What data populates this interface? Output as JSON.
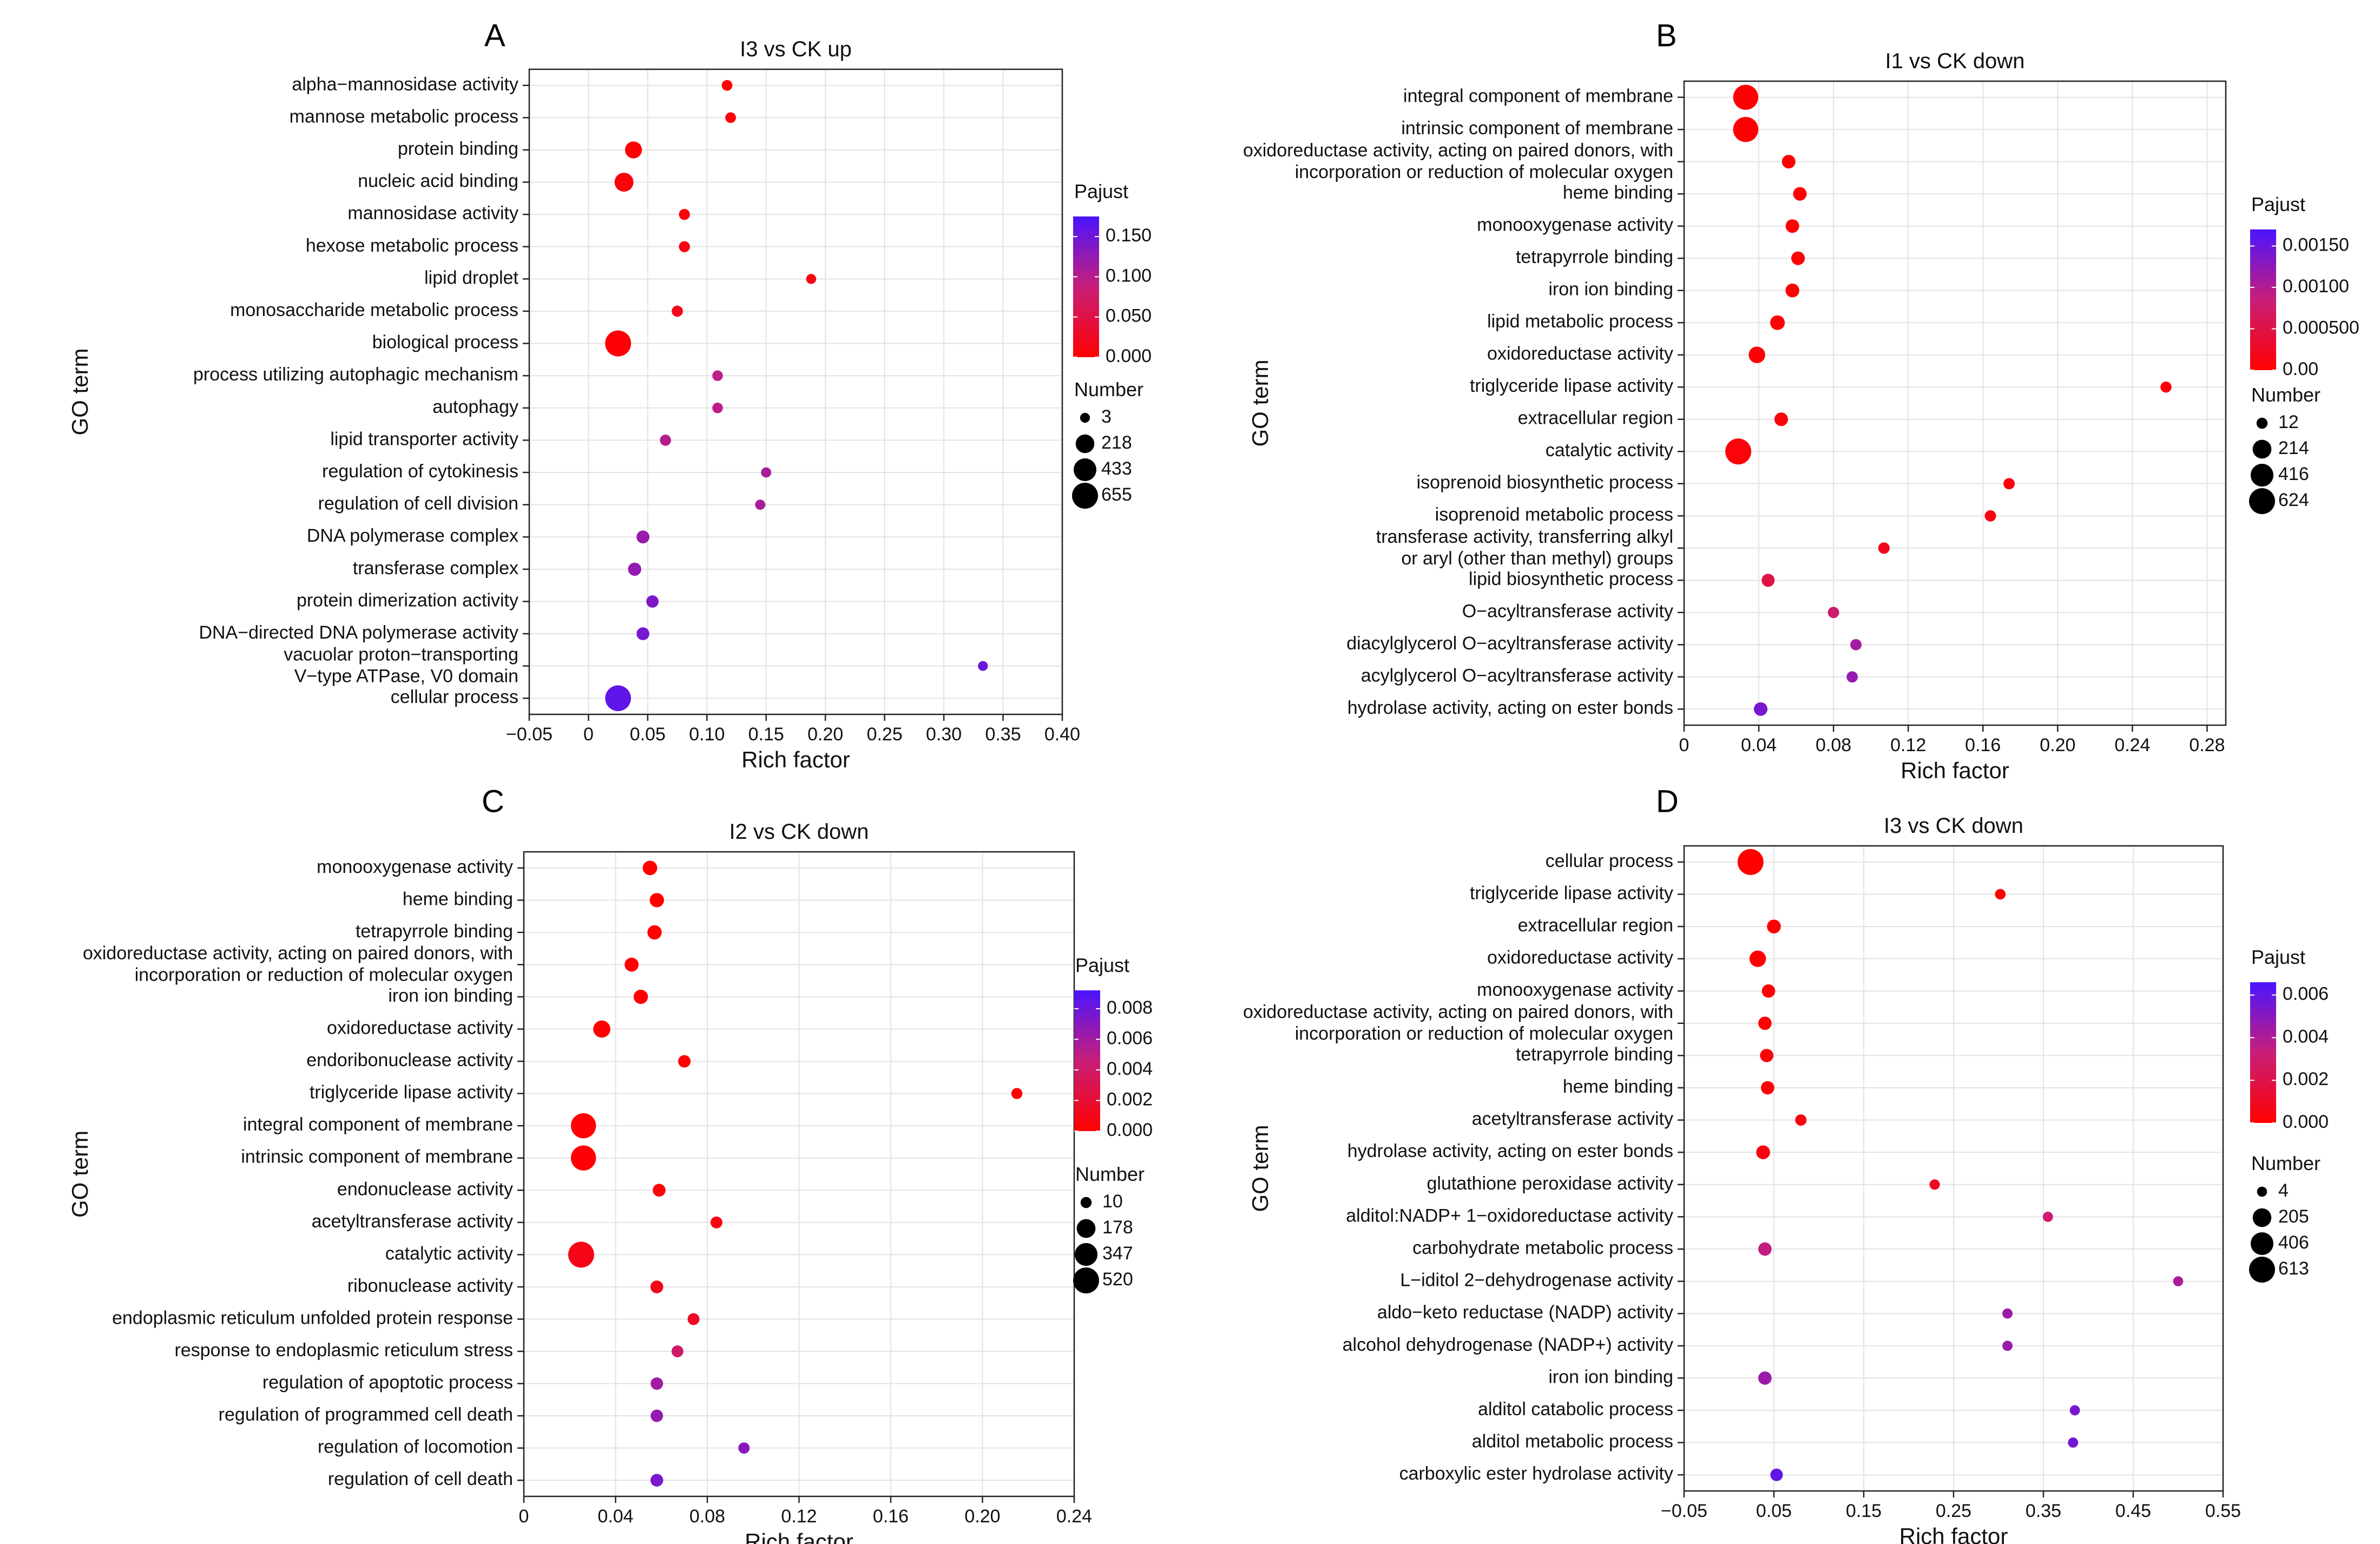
{
  "chart_data": [
    {
      "type": "scatter",
      "panel": "A",
      "title": "I3 vs CK up",
      "xlabel": "Rich factor",
      "ylabel": "GO term",
      "xlim": [
        -0.05,
        0.4
      ],
      "xticks": [
        -0.05,
        0,
        0.05,
        0.1,
        0.15,
        0.2,
        0.25,
        0.3,
        0.35,
        0.4
      ],
      "xtick_labels": [
        "−0.05",
        "0",
        "0.05",
        "0.10",
        "0.15",
        "0.20",
        "0.25",
        "0.30",
        "0.35",
        "0.40"
      ],
      "grid": true,
      "color_legend": {
        "title": "Pajust",
        "range": [
          0,
          0.175
        ],
        "ticks": [
          0.15,
          0.1,
          0.05,
          0
        ],
        "tick_labels": [
          "0.150",
          "0.100",
          "0.050",
          "0.000"
        ]
      },
      "size_legend": {
        "title": "Number",
        "values": [
          3,
          218,
          433,
          655
        ],
        "labels": [
          "3",
          "218",
          "433",
          "655"
        ]
      },
      "terms": [
        {
          "label": [
            "alpha−mannosidase activity"
          ],
          "rich_factor": 0.117,
          "pajust": 0.003,
          "number": 9
        },
        {
          "label": [
            "mannose metabolic process"
          ],
          "rich_factor": 0.12,
          "pajust": 0.003,
          "number": 9
        },
        {
          "label": [
            "protein binding"
          ],
          "rich_factor": 0.038,
          "pajust": 0.002,
          "number": 150
        },
        {
          "label": [
            "nucleic acid binding"
          ],
          "rich_factor": 0.03,
          "pajust": 0.004,
          "number": 230
        },
        {
          "label": [
            "mannosidase activity"
          ],
          "rich_factor": 0.081,
          "pajust": 0.008,
          "number": 12
        },
        {
          "label": [
            "hexose metabolic process"
          ],
          "rich_factor": 0.081,
          "pajust": 0.01,
          "number": 12
        },
        {
          "label": [
            "lipid droplet"
          ],
          "rich_factor": 0.188,
          "pajust": 0.014,
          "number": 4
        },
        {
          "label": [
            "monosaccharide metabolic process"
          ],
          "rich_factor": 0.075,
          "pajust": 0.02,
          "number": 14
        },
        {
          "label": [
            "biological process"
          ],
          "rich_factor": 0.025,
          "pajust": 0.005,
          "number": 655
        },
        {
          "label": [
            "process utilizing autophagic mechanism"
          ],
          "rich_factor": 0.109,
          "pajust": 0.095,
          "number": 8
        },
        {
          "label": [
            "autophagy"
          ],
          "rich_factor": 0.109,
          "pajust": 0.095,
          "number": 8
        },
        {
          "label": [
            "lipid transporter activity"
          ],
          "rich_factor": 0.065,
          "pajust": 0.1,
          "number": 14
        },
        {
          "label": [
            "regulation of cytokinesis"
          ],
          "rich_factor": 0.15,
          "pajust": 0.11,
          "number": 5
        },
        {
          "label": [
            "regulation of cell division"
          ],
          "rich_factor": 0.145,
          "pajust": 0.11,
          "number": 5
        },
        {
          "label": [
            "DNA polymerase complex"
          ],
          "rich_factor": 0.046,
          "pajust": 0.12,
          "number": 40
        },
        {
          "label": [
            "transferase complex"
          ],
          "rich_factor": 0.039,
          "pajust": 0.125,
          "number": 45
        },
        {
          "label": [
            "protein dimerization activity"
          ],
          "rich_factor": 0.054,
          "pajust": 0.14,
          "number": 30
        },
        {
          "label": [
            "DNA−directed DNA polymerase activity"
          ],
          "rich_factor": 0.046,
          "pajust": 0.145,
          "number": 38
        },
        {
          "label": [
            "vacuolar proton−transporting",
            "V−type ATPase, V0 domain"
          ],
          "rich_factor": 0.333,
          "pajust": 0.155,
          "number": 3
        },
        {
          "label": [
            "cellular process"
          ],
          "rich_factor": 0.025,
          "pajust": 0.16,
          "number": 640
        }
      ]
    },
    {
      "type": "scatter",
      "panel": "B",
      "title": "I1 vs CK down",
      "xlabel": "Rich factor",
      "ylabel": "GO term",
      "xlim": [
        0,
        0.29
      ],
      "xticks": [
        0,
        0.04,
        0.08,
        0.12,
        0.16,
        0.2,
        0.24,
        0.28
      ],
      "xtick_labels": [
        "0",
        "0.04",
        "0.08",
        "0.12",
        "0.16",
        "0.20",
        "0.24",
        "0.28"
      ],
      "grid": true,
      "color_legend": {
        "title": "Pajust",
        "range": [
          0,
          0.0017
        ],
        "ticks": [
          0.0015,
          0.001,
          0.0005,
          0
        ],
        "tick_labels": [
          "0.00150",
          "0.00100",
          "0.000500",
          "0.00"
        ]
      },
      "size_legend": {
        "title": "Number",
        "values": [
          12,
          214,
          416,
          624
        ],
        "labels": [
          "12",
          "214",
          "416",
          "624"
        ]
      },
      "terms": [
        {
          "label": [
            "integral component of membrane"
          ],
          "rich_factor": 0.033,
          "pajust": 1e-05,
          "number": 560
        },
        {
          "label": [
            "intrinsic component of membrane"
          ],
          "rich_factor": 0.033,
          "pajust": 1e-05,
          "number": 570
        },
        {
          "label": [
            "oxidoreductase activity, acting on paired donors, with",
            "incorporation or reduction of molecular oxygen"
          ],
          "rich_factor": 0.056,
          "pajust": 1e-05,
          "number": 50
        },
        {
          "label": [
            "heme binding"
          ],
          "rich_factor": 0.062,
          "pajust": 1e-05,
          "number": 50
        },
        {
          "label": [
            "monooxygenase activity"
          ],
          "rich_factor": 0.058,
          "pajust": 1e-05,
          "number": 50
        },
        {
          "label": [
            "tetrapyrrole binding"
          ],
          "rich_factor": 0.061,
          "pajust": 2e-05,
          "number": 50
        },
        {
          "label": [
            "iron ion binding"
          ],
          "rich_factor": 0.058,
          "pajust": 3e-05,
          "number": 55
        },
        {
          "label": [
            "lipid metabolic process"
          ],
          "rich_factor": 0.05,
          "pajust": 5e-05,
          "number": 75
        },
        {
          "label": [
            "oxidoreductase activity"
          ],
          "rich_factor": 0.039,
          "pajust": 5e-05,
          "number": 130
        },
        {
          "label": [
            "triglyceride lipase activity"
          ],
          "rich_factor": 0.258,
          "pajust": 5e-05,
          "number": 12
        },
        {
          "label": [
            "extracellular region"
          ],
          "rich_factor": 0.052,
          "pajust": 8e-05,
          "number": 50
        },
        {
          "label": [
            "catalytic activity"
          ],
          "rich_factor": 0.029,
          "pajust": 8e-05,
          "number": 624
        },
        {
          "label": [
            "isoprenoid biosynthetic process"
          ],
          "rich_factor": 0.174,
          "pajust": 0.0001,
          "number": 14
        },
        {
          "label": [
            "isoprenoid metabolic process"
          ],
          "rich_factor": 0.164,
          "pajust": 0.0001,
          "number": 15
        },
        {
          "label": [
            "transferase activity, transferring alkyl",
            "or aryl (other than methyl) groups"
          ],
          "rich_factor": 0.107,
          "pajust": 0.0002,
          "number": 16
        },
        {
          "label": [
            "lipid biosynthetic process"
          ],
          "rich_factor": 0.045,
          "pajust": 0.0005,
          "number": 40
        },
        {
          "label": [
            "O−acyltransferase activity"
          ],
          "rich_factor": 0.08,
          "pajust": 0.0008,
          "number": 15
        },
        {
          "label": [
            "diacylglycerol O−acyltransferase activity"
          ],
          "rich_factor": 0.092,
          "pajust": 0.0011,
          "number": 14
        },
        {
          "label": [
            "acylglycerol O−acyltransferase activity"
          ],
          "rich_factor": 0.09,
          "pajust": 0.0012,
          "number": 14
        },
        {
          "label": [
            "hydrolase activity, acting on ester bonds"
          ],
          "rich_factor": 0.041,
          "pajust": 0.0014,
          "number": 50
        }
      ]
    },
    {
      "type": "scatter",
      "panel": "C",
      "title": "I2 vs CK down",
      "xlabel": "Rich factor",
      "ylabel": "GO term",
      "xlim": [
        0,
        0.24
      ],
      "xticks": [
        0,
        0.04,
        0.08,
        0.12,
        0.16,
        0.2,
        0.24
      ],
      "xtick_labels": [
        "0",
        "0.04",
        "0.08",
        "0.12",
        "0.16",
        "0.20",
        "0.24"
      ],
      "grid": true,
      "color_legend": {
        "title": "Pajust",
        "range": [
          0,
          0.0092
        ],
        "ticks": [
          0.008,
          0.006,
          0.004,
          0.002,
          0
        ],
        "tick_labels": [
          "0.008",
          "0.006",
          "0.004",
          "0.002",
          "0.000"
        ]
      },
      "size_legend": {
        "title": "Number",
        "values": [
          10,
          178,
          347,
          520
        ],
        "labels": [
          "10",
          "178",
          "347",
          "520"
        ]
      },
      "terms": [
        {
          "label": [
            "monooxygenase activity"
          ],
          "rich_factor": 0.055,
          "pajust": 2e-05,
          "number": 60
        },
        {
          "label": [
            "heme binding"
          ],
          "rich_factor": 0.058,
          "pajust": 2e-05,
          "number": 55
        },
        {
          "label": [
            "tetrapyrrole binding"
          ],
          "rich_factor": 0.057,
          "pajust": 3e-05,
          "number": 55
        },
        {
          "label": [
            "oxidoreductase activity, acting on paired donors, with",
            "incorporation or reduction of molecular oxygen"
          ],
          "rich_factor": 0.047,
          "pajust": 3e-05,
          "number": 50
        },
        {
          "label": [
            "iron ion binding"
          ],
          "rich_factor": 0.051,
          "pajust": 5e-05,
          "number": 55
        },
        {
          "label": [
            "oxidoreductase activity"
          ],
          "rich_factor": 0.034,
          "pajust": 5e-05,
          "number": 125
        },
        {
          "label": [
            "endoribonuclease activity"
          ],
          "rich_factor": 0.07,
          "pajust": 0.0001,
          "number": 25
        },
        {
          "label": [
            "triglyceride lipase activity"
          ],
          "rich_factor": 0.215,
          "pajust": 0.0001,
          "number": 10
        },
        {
          "label": [
            "integral component of membrane"
          ],
          "rich_factor": 0.026,
          "pajust": 0.0002,
          "number": 470
        },
        {
          "label": [
            "intrinsic component of membrane"
          ],
          "rich_factor": 0.026,
          "pajust": 0.0002,
          "number": 470
        },
        {
          "label": [
            "endonuclease activity"
          ],
          "rich_factor": 0.059,
          "pajust": 0.0004,
          "number": 30
        },
        {
          "label": [
            "acetyltransferase activity"
          ],
          "rich_factor": 0.084,
          "pajust": 0.0006,
          "number": 18
        },
        {
          "label": [
            "catalytic activity"
          ],
          "rich_factor": 0.025,
          "pajust": 0.0008,
          "number": 520
        },
        {
          "label": [
            "ribonuclease activity"
          ],
          "rich_factor": 0.058,
          "pajust": 0.001,
          "number": 30
        },
        {
          "label": [
            "endoplasmic reticulum unfolded protein response"
          ],
          "rich_factor": 0.074,
          "pajust": 0.0015,
          "number": 18
        },
        {
          "label": [
            "response to endoplasmic reticulum stress"
          ],
          "rich_factor": 0.067,
          "pajust": 0.004,
          "number": 18
        },
        {
          "label": [
            "regulation of apoptotic process"
          ],
          "rich_factor": 0.058,
          "pajust": 0.006,
          "number": 25
        },
        {
          "label": [
            "regulation of programmed cell death"
          ],
          "rich_factor": 0.058,
          "pajust": 0.0065,
          "number": 25
        },
        {
          "label": [
            "regulation of locomotion"
          ],
          "rich_factor": 0.096,
          "pajust": 0.007,
          "number": 12
        },
        {
          "label": [
            "regulation of cell death"
          ],
          "rich_factor": 0.058,
          "pajust": 0.0075,
          "number": 28
        }
      ]
    },
    {
      "type": "scatter",
      "panel": "D",
      "title": "I3 vs CK down",
      "xlabel": "Rich factor",
      "ylabel": "GO term",
      "xlim": [
        -0.05,
        0.55
      ],
      "xticks": [
        -0.05,
        0.05,
        0.15,
        0.25,
        0.35,
        0.45,
        0.55
      ],
      "xtick_labels": [
        "−0.05",
        "0.05",
        "0.15",
        "0.25",
        "0.35",
        "0.45",
        "0.55"
      ],
      "grid": true,
      "color_legend": {
        "title": "Pajust",
        "range": [
          0,
          0.0066
        ],
        "ticks": [
          0.006,
          0.004,
          0.002,
          0
        ],
        "tick_labels": [
          "0.006",
          "0.004",
          "0.002",
          "0.000"
        ]
      },
      "size_legend": {
        "title": "Number",
        "values": [
          4,
          205,
          406,
          613
        ],
        "labels": [
          "4",
          "205",
          "406",
          "613"
        ]
      },
      "terms": [
        {
          "label": [
            "cellular process"
          ],
          "rich_factor": 0.024,
          "pajust": 1e-05,
          "number": 613
        },
        {
          "label": [
            "triglyceride lipase activity"
          ],
          "rich_factor": 0.302,
          "pajust": 1e-05,
          "number": 8
        },
        {
          "label": [
            "extracellular region"
          ],
          "rich_factor": 0.05,
          "pajust": 5e-05,
          "number": 55
        },
        {
          "label": [
            "oxidoreductase activity"
          ],
          "rich_factor": 0.032,
          "pajust": 5e-05,
          "number": 125
        },
        {
          "label": [
            "monooxygenase activity"
          ],
          "rich_factor": 0.044,
          "pajust": 0.0001,
          "number": 45
        },
        {
          "label": [
            "oxidoreductase activity, acting on paired donors, with",
            "incorporation or reduction of molecular oxygen"
          ],
          "rich_factor": 0.04,
          "pajust": 0.0001,
          "number": 45
        },
        {
          "label": [
            "tetrapyrrole binding"
          ],
          "rich_factor": 0.042,
          "pajust": 0.0002,
          "number": 45
        },
        {
          "label": [
            "heme binding"
          ],
          "rich_factor": 0.043,
          "pajust": 0.0002,
          "number": 45
        },
        {
          "label": [
            "acetyltransferase activity"
          ],
          "rich_factor": 0.08,
          "pajust": 0.0003,
          "number": 15
        },
        {
          "label": [
            "hydrolase activity, acting on ester bonds"
          ],
          "rich_factor": 0.038,
          "pajust": 0.0004,
          "number": 55
        },
        {
          "label": [
            "glutathione peroxidase activity"
          ],
          "rich_factor": 0.229,
          "pajust": 0.001,
          "number": 6
        },
        {
          "label": [
            "alditol:NADP+ 1−oxidoreductase activity"
          ],
          "rich_factor": 0.355,
          "pajust": 0.003,
          "number": 5
        },
        {
          "label": [
            "carbohydrate metabolic process"
          ],
          "rich_factor": 0.04,
          "pajust": 0.0035,
          "number": 45
        },
        {
          "label": [
            "L−iditol 2−dehydrogenase activity"
          ],
          "rich_factor": 0.5,
          "pajust": 0.004,
          "number": 4
        },
        {
          "label": [
            "aldo−keto reductase (NADP) activity"
          ],
          "rich_factor": 0.31,
          "pajust": 0.0045,
          "number": 5
        },
        {
          "label": [
            "alcohol dehydrogenase (NADP+) activity"
          ],
          "rich_factor": 0.31,
          "pajust": 0.0045,
          "number": 5
        },
        {
          "label": [
            "iron ion binding"
          ],
          "rich_factor": 0.04,
          "pajust": 0.0045,
          "number": 45
        },
        {
          "label": [
            "alditol catabolic process"
          ],
          "rich_factor": 0.385,
          "pajust": 0.0055,
          "number": 5
        },
        {
          "label": [
            "alditol metabolic process"
          ],
          "rich_factor": 0.383,
          "pajust": 0.0055,
          "number": 5
        },
        {
          "label": [
            "carboxylic ester hydrolase activity"
          ],
          "rich_factor": 0.053,
          "pajust": 0.006,
          "number": 30
        }
      ]
    }
  ]
}
